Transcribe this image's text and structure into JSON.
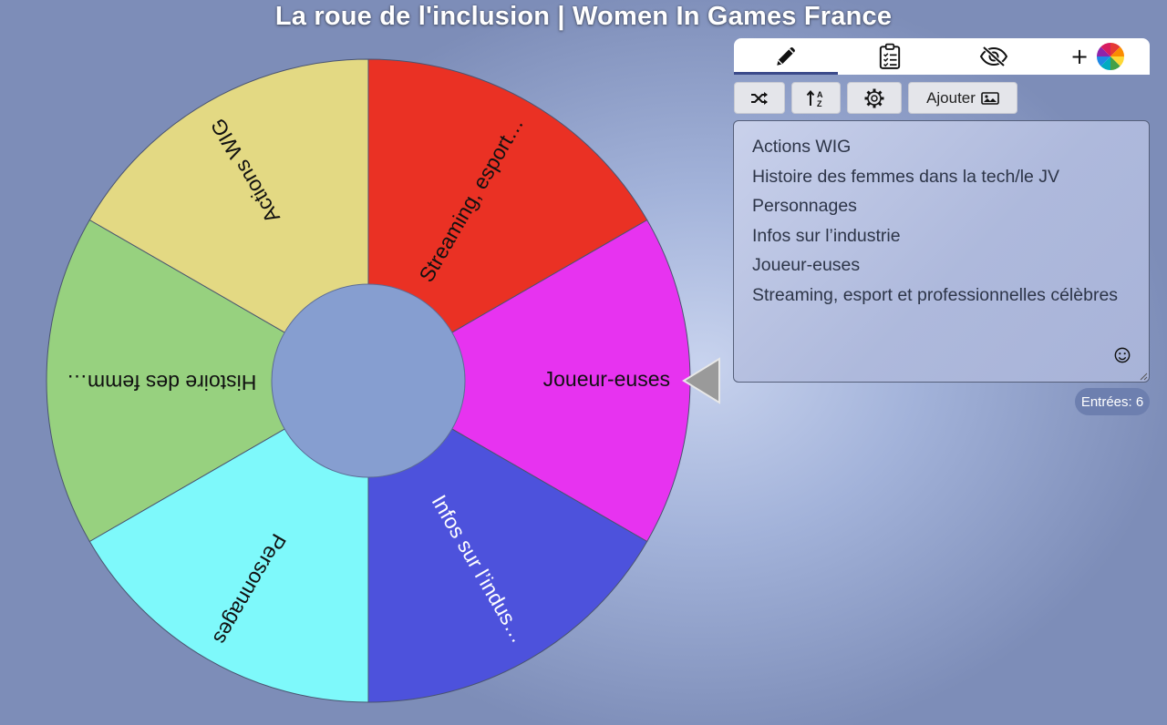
{
  "page": {
    "title": "La roue de l'inclusion | Women In Games France"
  },
  "wheel": {
    "segments": [
      {
        "label": "Joueur-euses",
        "color": "#e733f0",
        "text_color": "#111111"
      },
      {
        "label": "Infos sur l’indus…",
        "color": "#4d52dc",
        "text_color": "#ffffff"
      },
      {
        "label": "Personnages",
        "color": "#7ef9fb",
        "text_color": "#111111"
      },
      {
        "label": "Histoire des femm…",
        "color": "#97d17f",
        "text_color": "#111111"
      },
      {
        "label": "Actions WIG",
        "color": "#e3d983",
        "text_color": "#111111"
      },
      {
        "label": "Streaming, esport…",
        "color": "#ea3124",
        "text_color": "#111111"
      }
    ],
    "hub_color": "#869ed0",
    "pointer_color": "#9a9a9a"
  },
  "tabs": [
    {
      "name": "pencil-icon",
      "active": true
    },
    {
      "name": "clipboard-list-icon",
      "active": false
    },
    {
      "name": "eye-slash-icon",
      "active": false
    },
    {
      "name": "add-color-palette-icon",
      "label": "+",
      "active": false
    }
  ],
  "toolbar": {
    "shuffle_icon": "shuffle-icon",
    "sort_icon": "sort-icon",
    "settings_icon": "gear-icon",
    "add_image_label": "Ajouter",
    "add_image_icon": "image-icon"
  },
  "entries": {
    "lines": [
      "Actions WIG",
      "Histoire des femmes dans la tech/le JV",
      "Personnages",
      "Infos sur l’industrie",
      "Joueur-euses",
      "Streaming, esport et professionnelles célèbres"
    ],
    "count_label": "Entrées: 6"
  }
}
